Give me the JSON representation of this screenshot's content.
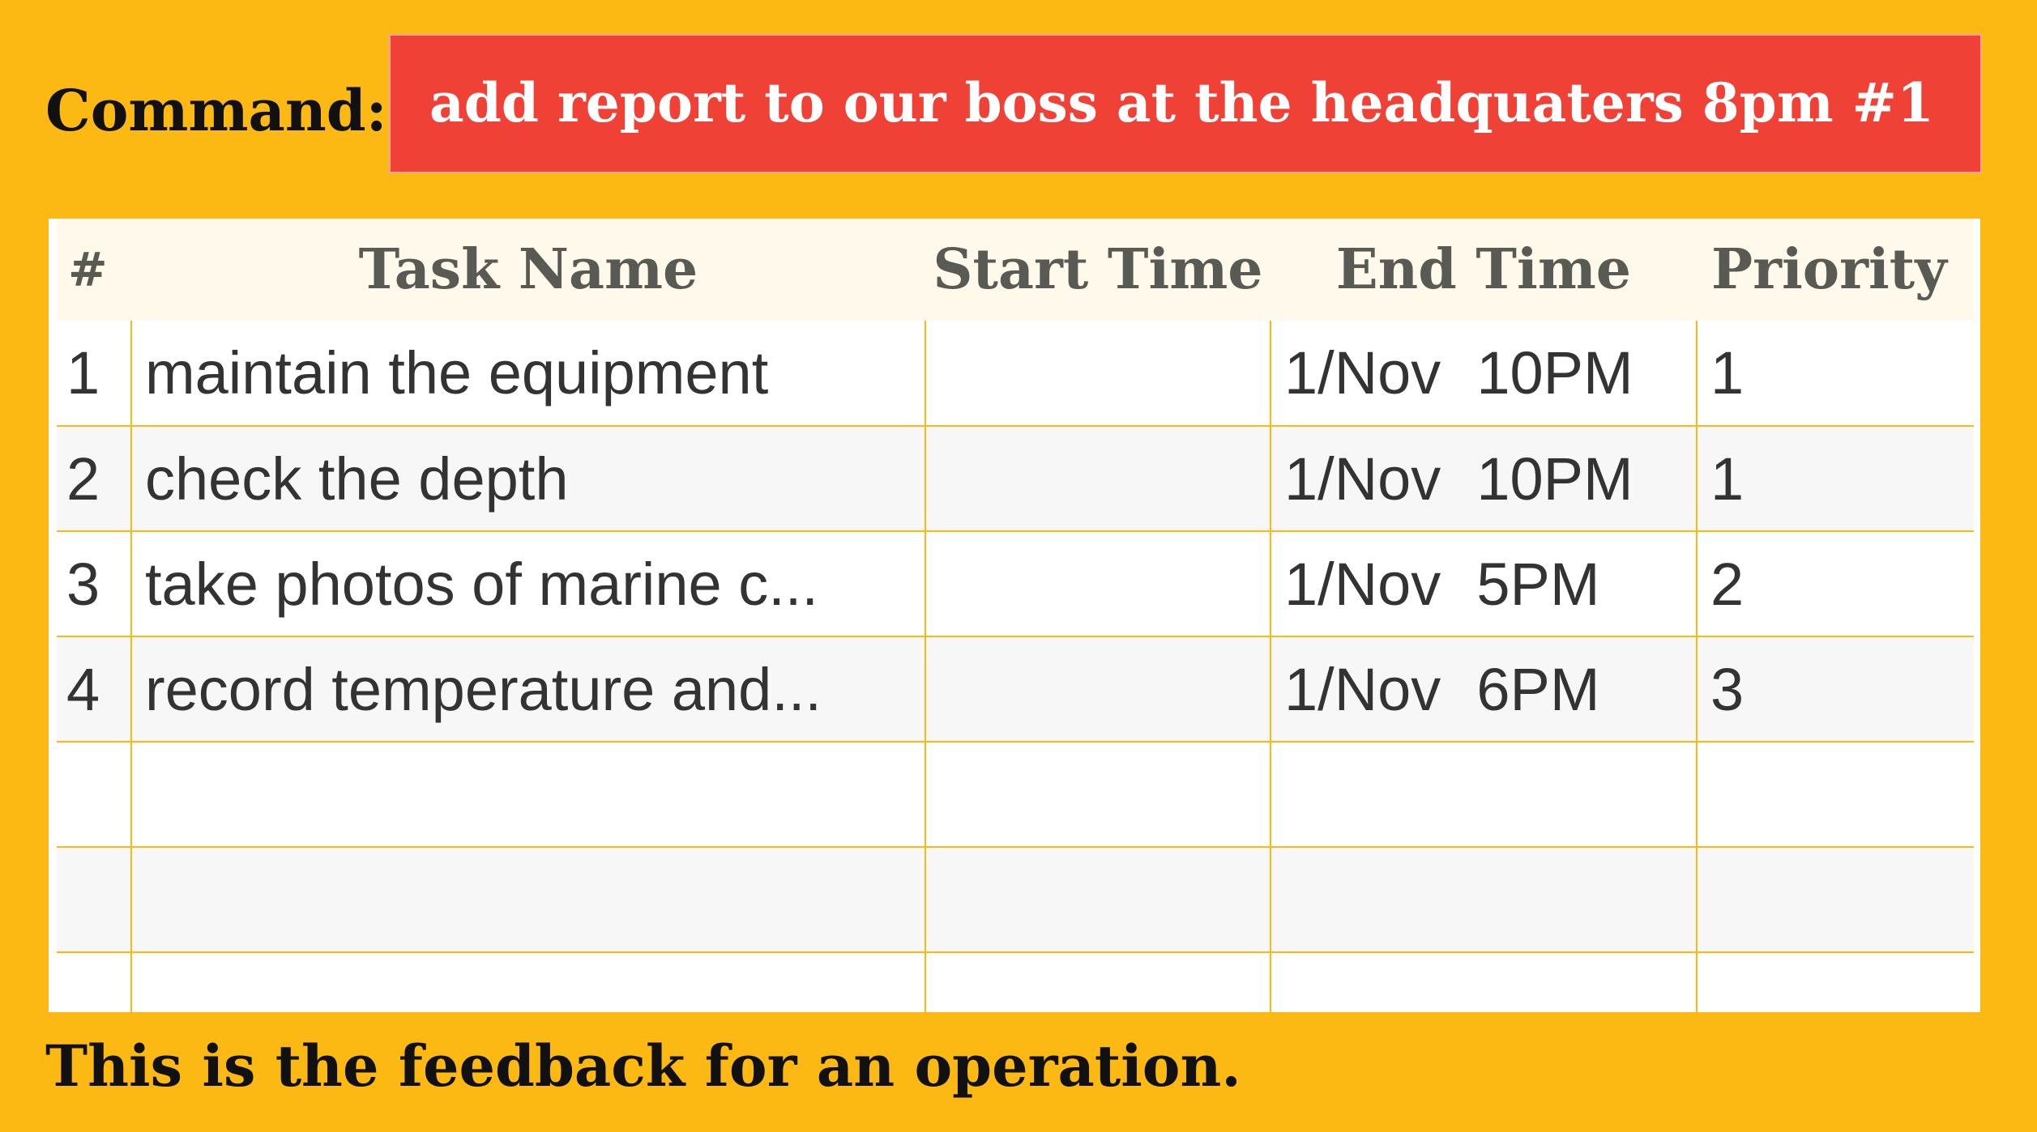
{
  "command": {
    "label": "Command:",
    "value": "add report to our boss at the headquaters 8pm #1"
  },
  "table": {
    "headers": {
      "num": "#",
      "name": "Task Name",
      "start": "Start Time",
      "end": "End Time",
      "priority": "Priority"
    },
    "rows": [
      {
        "num": "1",
        "name": "maintain the equipment",
        "start": "",
        "end_date": "1/Nov",
        "end_time": "10PM",
        "priority": "1"
      },
      {
        "num": "2",
        "name": "check the depth",
        "start": "",
        "end_date": "1/Nov",
        "end_time": "10PM",
        "priority": "1"
      },
      {
        "num": "3",
        "name": "take photos of marine c...",
        "start": "",
        "end_date": "1/Nov",
        "end_time": "5PM",
        "priority": "2"
      },
      {
        "num": "4",
        "name": "record temperature and...",
        "start": "",
        "end_date": "1/Nov",
        "end_time": "6PM",
        "priority": "3"
      },
      {
        "num": "",
        "name": "",
        "start": "",
        "end_date": "",
        "end_time": "",
        "priority": ""
      },
      {
        "num": "",
        "name": "",
        "start": "",
        "end_date": "",
        "end_time": "",
        "priority": ""
      },
      {
        "num": "",
        "name": "",
        "start": "",
        "end_date": "",
        "end_time": "",
        "priority": ""
      }
    ]
  },
  "feedback": "This is the feedback for an operation.",
  "colors": {
    "background": "#FDB913",
    "command_box": "#EF4136",
    "header_row": "#FFF9EC",
    "grid_line": "#FDB913"
  }
}
